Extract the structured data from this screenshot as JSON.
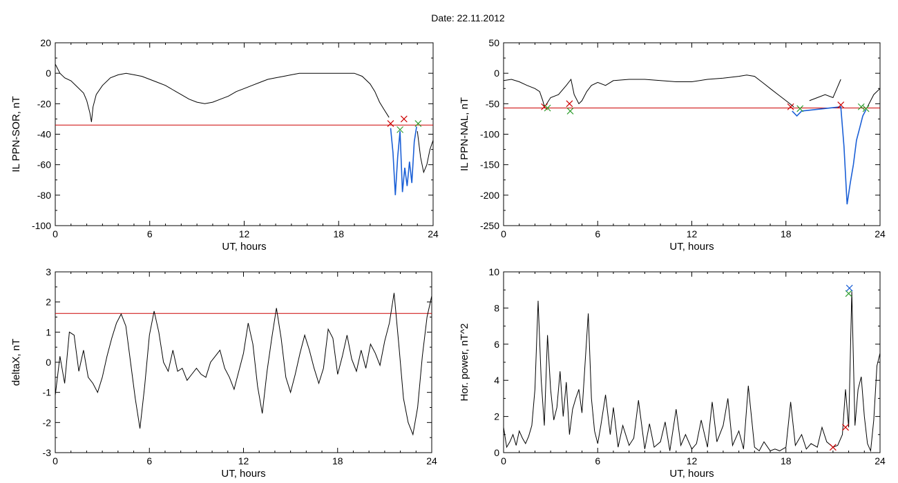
{
  "figure_title": "Date:  22.11.2012",
  "colors": {
    "data": "#000000",
    "threshold": "#cc0000",
    "event": "#1a5fd6",
    "mark_red": "#cc0000",
    "mark_green": "#2e9e2e",
    "mark_blue": "#1a5fd6"
  },
  "chart_data": [
    {
      "type": "line",
      "title": "",
      "xlabel": "UT, hours",
      "ylabel": "IL PPN-SOR, nT",
      "xlim": [
        0,
        24
      ],
      "ylim": [
        -100,
        20
      ],
      "xticks": [
        0,
        6,
        12,
        18,
        24
      ],
      "yticks": [
        -100,
        -80,
        -60,
        -40,
        -20,
        0,
        20
      ],
      "threshold": -34,
      "series": [
        {
          "x": [
            0,
            0.3,
            0.6,
            1.0,
            1.4,
            1.8,
            2.0,
            2.2,
            2.3,
            2.4,
            2.6,
            3.0,
            3.5,
            4.0,
            4.5,
            5.0,
            5.5,
            6.0,
            6.5,
            7.0,
            7.5,
            8.0,
            8.5,
            9.0,
            9.5,
            10.0,
            10.5,
            11.0,
            11.5,
            12.0,
            12.5,
            13.0,
            13.5,
            14.0,
            14.5,
            15.0,
            15.5,
            16.0,
            16.5,
            17.0,
            17.5,
            18.0,
            18.5,
            19.0,
            19.5,
            20.0,
            20.3,
            20.6,
            20.9,
            21.2
          ],
          "y": [
            6,
            0,
            -3,
            -5,
            -9,
            -13,
            -18,
            -26,
            -32,
            -22,
            -14,
            -8,
            -3,
            -1,
            0,
            -1,
            -2,
            -4,
            -6,
            -8,
            -11,
            -14,
            -17,
            -19,
            -20,
            -19,
            -17,
            -15,
            -12,
            -10,
            -8,
            -6,
            -4,
            -3,
            -2,
            -1,
            0,
            0,
            0,
            0,
            0,
            0,
            0,
            0,
            -2,
            -7,
            -12,
            -19,
            -24,
            -29
          ]
        },
        {
          "x": [
            23.0,
            23.2,
            23.4,
            23.6,
            23.8,
            24.0
          ],
          "y": [
            -38,
            -55,
            -65,
            -60,
            -50,
            -44
          ]
        }
      ],
      "event_series": {
        "x": [
          21.3,
          21.45,
          21.6,
          21.75,
          21.9,
          22.05,
          22.2,
          22.35,
          22.5,
          22.65,
          22.8,
          22.95
        ],
        "y": [
          -36,
          -52,
          -80,
          -55,
          -38,
          -78,
          -62,
          -74,
          -58,
          -72,
          -45,
          -35
        ]
      },
      "markers": [
        {
          "x": 21.3,
          "y": -33,
          "color": "red"
        },
        {
          "x": 21.9,
          "y": -37,
          "color": "green"
        },
        {
          "x": 22.15,
          "y": -30,
          "color": "red"
        },
        {
          "x": 23.05,
          "y": -33,
          "color": "green"
        }
      ]
    },
    {
      "type": "line",
      "title": "",
      "xlabel": "UT, hours",
      "ylabel": "IL PPN-NAL, nT",
      "xlim": [
        0,
        24
      ],
      "ylim": [
        -250,
        50
      ],
      "xticks": [
        0,
        6,
        12,
        18,
        24
      ],
      "yticks": [
        -250,
        -200,
        -150,
        -100,
        -50,
        0,
        50
      ],
      "threshold": -57,
      "series": [
        {
          "x": [
            0,
            0.5,
            1.0,
            1.5,
            2.0,
            2.3,
            2.5,
            2.6,
            2.7,
            3.0,
            3.5,
            4.0,
            4.3,
            4.5,
            4.8,
            5.0,
            5.3,
            5.6,
            6.0,
            6.5,
            7.0,
            8.0,
            9.0,
            10.0,
            11.0,
            12.0,
            13.0,
            14.0,
            15.0,
            15.5,
            16.0,
            16.5,
            17.0,
            17.5,
            18.0,
            18.5
          ],
          "y": [
            -12,
            -10,
            -14,
            -20,
            -25,
            -30,
            -45,
            -55,
            -52,
            -40,
            -35,
            -20,
            -10,
            -35,
            -50,
            -45,
            -30,
            -20,
            -15,
            -20,
            -12,
            -10,
            -10,
            -12,
            -14,
            -14,
            -10,
            -8,
            -5,
            -3,
            -5,
            -15,
            -25,
            -35,
            -45,
            -55
          ]
        },
        {
          "x": [
            19.5,
            20.0,
            20.5,
            21.0,
            21.5
          ],
          "y": [
            -45,
            -40,
            -35,
            -40,
            -10
          ]
        },
        {
          "x": [
            23.2,
            23.6,
            24.0
          ],
          "y": [
            -55,
            -35,
            -25
          ]
        }
      ],
      "event_series": {
        "x": [
          18.4,
          18.7,
          19.0,
          21.5,
          21.7,
          21.9,
          22.1,
          22.3,
          22.5,
          22.7,
          22.9,
          23.1
        ],
        "y": [
          -62,
          -70,
          -62,
          -55,
          -120,
          -215,
          -180,
          -150,
          -110,
          -90,
          -70,
          -60
        ]
      },
      "markers": [
        {
          "x": 2.6,
          "y": -55,
          "color": "red"
        },
        {
          "x": 2.8,
          "y": -57,
          "color": "green"
        },
        {
          "x": 4.2,
          "y": -50,
          "color": "red"
        },
        {
          "x": 4.25,
          "y": -62,
          "color": "green"
        },
        {
          "x": 18.3,
          "y": -55,
          "color": "red"
        },
        {
          "x": 18.9,
          "y": -58,
          "color": "green"
        },
        {
          "x": 21.5,
          "y": -52,
          "color": "red"
        },
        {
          "x": 22.8,
          "y": -55,
          "color": "green"
        },
        {
          "x": 23.1,
          "y": -58,
          "color": "green"
        }
      ]
    },
    {
      "type": "line",
      "title": "",
      "xlabel": "UT, hours",
      "ylabel": "deltaX, nT",
      "xlim": [
        0,
        24
      ],
      "ylim": [
        -3,
        3
      ],
      "xticks": [
        0,
        6,
        12,
        18,
        24
      ],
      "yticks": [
        -3,
        -2,
        -1,
        0,
        1,
        2,
        3
      ],
      "threshold": 1.62,
      "series": [
        {
          "x": [
            0,
            0.3,
            0.6,
            0.9,
            1.2,
            1.5,
            1.8,
            2.1,
            2.4,
            2.7,
            3.0,
            3.3,
            3.6,
            3.9,
            4.2,
            4.5,
            4.8,
            5.1,
            5.4,
            5.7,
            6.0,
            6.3,
            6.6,
            6.9,
            7.2,
            7.5,
            7.8,
            8.1,
            8.4,
            8.7,
            9.0,
            9.3,
            9.6,
            9.9,
            10.2,
            10.5,
            10.8,
            11.1,
            11.4,
            11.7,
            12.0,
            12.3,
            12.6,
            12.9,
            13.2,
            13.5,
            13.8,
            14.1,
            14.4,
            14.7,
            15.0,
            15.3,
            15.6,
            15.9,
            16.2,
            16.5,
            16.8,
            17.1,
            17.4,
            17.7,
            18.0,
            18.3,
            18.6,
            18.9,
            19.2,
            19.5,
            19.8,
            20.1,
            20.4,
            20.7,
            21.0,
            21.3,
            21.6,
            21.9,
            22.2,
            22.5,
            22.8,
            23.1,
            23.4,
            23.7,
            24.0
          ],
          "y": [
            -1.1,
            0.2,
            -0.7,
            1.0,
            0.9,
            -0.3,
            0.4,
            -0.5,
            -0.7,
            -1.0,
            -0.5,
            0.2,
            0.8,
            1.3,
            1.6,
            1.2,
            0.0,
            -1.2,
            -2.2,
            -0.8,
            0.9,
            1.7,
            1.0,
            0.0,
            -0.3,
            0.4,
            -0.3,
            -0.2,
            -0.6,
            -0.4,
            -0.2,
            -0.4,
            -0.5,
            0.0,
            0.2,
            0.4,
            -0.2,
            -0.5,
            -0.9,
            -0.3,
            0.3,
            1.3,
            0.6,
            -0.8,
            -1.7,
            -0.3,
            0.8,
            1.8,
            0.8,
            -0.5,
            -1.0,
            -0.4,
            0.3,
            0.9,
            0.4,
            -0.2,
            -0.7,
            -0.2,
            1.1,
            0.8,
            -0.4,
            0.2,
            0.9,
            0.1,
            -0.3,
            0.4,
            -0.2,
            0.6,
            0.3,
            -0.1,
            0.7,
            1.3,
            2.3,
            0.6,
            -1.2,
            -2.0,
            -2.4,
            -1.5,
            0.2,
            1.5,
            2.2
          ]
        }
      ],
      "markers": []
    },
    {
      "type": "line",
      "title": "",
      "xlabel": "UT, hours",
      "ylabel": "Hor. power, nT^2",
      "xlim": [
        0,
        24
      ],
      "ylim": [
        0,
        10
      ],
      "xticks": [
        0,
        6,
        12,
        18,
        24
      ],
      "yticks": [
        0,
        2,
        4,
        6,
        8,
        10
      ],
      "threshold": null,
      "series": [
        {
          "x": [
            0,
            0.2,
            0.4,
            0.6,
            0.8,
            1.0,
            1.2,
            1.4,
            1.6,
            1.8,
            2.0,
            2.2,
            2.4,
            2.6,
            2.8,
            3.0,
            3.2,
            3.4,
            3.6,
            3.8,
            4.0,
            4.2,
            4.4,
            4.6,
            4.8,
            5.0,
            5.2,
            5.4,
            5.6,
            5.8,
            6.0,
            6.2,
            6.5,
            6.8,
            7.0,
            7.3,
            7.6,
            8.0,
            8.3,
            8.6,
            9.0,
            9.3,
            9.6,
            10.0,
            10.3,
            10.6,
            11.0,
            11.3,
            11.6,
            12.0,
            12.3,
            12.6,
            13.0,
            13.3,
            13.6,
            14.0,
            14.3,
            14.6,
            15.0,
            15.3,
            15.6,
            16.0,
            16.3,
            16.6,
            17.0,
            17.3,
            17.6,
            18.0,
            18.3,
            18.6,
            19.0,
            19.3,
            19.6,
            20.0,
            20.3,
            20.6,
            21.0,
            21.3,
            21.6,
            21.8,
            22.0,
            22.2,
            22.4,
            22.6,
            22.8,
            23.0,
            23.2,
            23.4,
            23.6,
            23.8,
            24.0
          ],
          "y": [
            1.4,
            0.3,
            0.6,
            1.0,
            0.4,
            1.2,
            0.8,
            0.5,
            0.9,
            1.5,
            3.5,
            8.4,
            4.0,
            1.5,
            6.5,
            3.5,
            1.8,
            2.5,
            4.5,
            2.0,
            3.9,
            1.0,
            2.4,
            3.0,
            3.5,
            2.2,
            5.0,
            7.7,
            3.0,
            1.2,
            0.5,
            1.5,
            3.2,
            1.0,
            2.5,
            0.3,
            1.5,
            0.4,
            0.8,
            2.9,
            0.2,
            1.6,
            0.3,
            0.6,
            1.7,
            0.1,
            2.4,
            0.4,
            1.0,
            0.2,
            0.5,
            1.8,
            0.3,
            2.8,
            0.6,
            1.5,
            3.0,
            0.4,
            1.2,
            0.2,
            3.7,
            0.3,
            0.1,
            0.6,
            0.1,
            0.2,
            0.1,
            0.3,
            2.8,
            0.4,
            1.0,
            0.2,
            0.5,
            0.3,
            1.4,
            0.6,
            0.3,
            0.4,
            1.0,
            3.5,
            1.4,
            8.9,
            1.5,
            3.5,
            4.2,
            2.0,
            0.5,
            0.1,
            1.8,
            4.8,
            5.5
          ]
        }
      ],
      "markers": [
        {
          "x": 21.0,
          "y": 0.3,
          "color": "red"
        },
        {
          "x": 21.8,
          "y": 1.4,
          "color": "red"
        },
        {
          "x": 22.0,
          "y": 8.8,
          "color": "green"
        },
        {
          "x": 22.05,
          "y": 9.1,
          "color": "blue"
        }
      ]
    }
  ]
}
